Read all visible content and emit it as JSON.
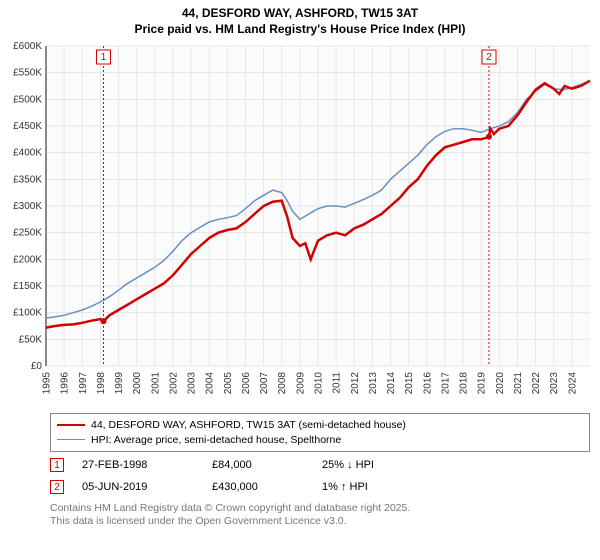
{
  "title_line1": "44, DESFORD WAY, ASHFORD, TW15 3AT",
  "title_line2": "Price paid vs. HM Land Registry's House Price Index (HPI)",
  "chart": {
    "type": "line",
    "background_color": "#ffffff",
    "plot_bg": "#fbfbfb",
    "grid_color": "#e6e6e6",
    "x_years": [
      1995,
      1996,
      1997,
      1998,
      1999,
      2000,
      2001,
      2002,
      2003,
      2004,
      2005,
      2006,
      2007,
      2008,
      2009,
      2010,
      2011,
      2012,
      2013,
      2014,
      2015,
      2016,
      2017,
      2018,
      2019,
      2020,
      2021,
      2022,
      2023,
      2024
    ],
    "x_range": [
      1995,
      2025
    ],
    "y_ticks": [
      0,
      50,
      100,
      150,
      200,
      250,
      300,
      350,
      400,
      450,
      500,
      550,
      600
    ],
    "y_tick_labels": [
      "£0",
      "£50K",
      "£100K",
      "£150K",
      "£200K",
      "£250K",
      "£300K",
      "£350K",
      "£400K",
      "£450K",
      "£500K",
      "£550K",
      "£600K"
    ],
    "y_range": [
      0,
      600
    ],
    "series": {
      "red": {
        "color": "#d40000",
        "width": 2.5,
        "label": "44, DESFORD WAY, ASHFORD, TW15 3AT (semi-detached house)",
        "points": [
          [
            1995,
            72
          ],
          [
            1995.5,
            75
          ],
          [
            1996,
            77
          ],
          [
            1996.5,
            78
          ],
          [
            1997,
            81
          ],
          [
            1997.5,
            85
          ],
          [
            1998,
            88
          ],
          [
            1998.17,
            84
          ],
          [
            1998.5,
            95
          ],
          [
            1999,
            105
          ],
          [
            1999.5,
            115
          ],
          [
            2000,
            125
          ],
          [
            2000.5,
            135
          ],
          [
            2001,
            145
          ],
          [
            2001.5,
            155
          ],
          [
            2002,
            170
          ],
          [
            2002.5,
            190
          ],
          [
            2003,
            210
          ],
          [
            2003.5,
            225
          ],
          [
            2004,
            240
          ],
          [
            2004.5,
            250
          ],
          [
            2005,
            255
          ],
          [
            2005.5,
            258
          ],
          [
            2006,
            270
          ],
          [
            2006.5,
            285
          ],
          [
            2007,
            300
          ],
          [
            2007.5,
            308
          ],
          [
            2008,
            310
          ],
          [
            2008.3,
            280
          ],
          [
            2008.6,
            240
          ],
          [
            2009,
            225
          ],
          [
            2009.3,
            230
          ],
          [
            2009.6,
            200
          ],
          [
            2010,
            235
          ],
          [
            2010.5,
            245
          ],
          [
            2011,
            250
          ],
          [
            2011.5,
            245
          ],
          [
            2012,
            258
          ],
          [
            2012.5,
            265
          ],
          [
            2013,
            275
          ],
          [
            2013.5,
            285
          ],
          [
            2014,
            300
          ],
          [
            2014.5,
            315
          ],
          [
            2015,
            335
          ],
          [
            2015.5,
            350
          ],
          [
            2016,
            375
          ],
          [
            2016.5,
            395
          ],
          [
            2017,
            410
          ],
          [
            2017.5,
            415
          ],
          [
            2018,
            420
          ],
          [
            2018.5,
            425
          ],
          [
            2019,
            425
          ],
          [
            2019.3,
            428
          ],
          [
            2019.43,
            430
          ],
          [
            2019.5,
            445
          ],
          [
            2019.7,
            435
          ],
          [
            2020,
            445
          ],
          [
            2020.5,
            450
          ],
          [
            2021,
            470
          ],
          [
            2021.5,
            495
          ],
          [
            2022,
            518
          ],
          [
            2022.5,
            530
          ],
          [
            2023,
            520
          ],
          [
            2023.3,
            510
          ],
          [
            2023.6,
            525
          ],
          [
            2024,
            520
          ],
          [
            2024.5,
            525
          ],
          [
            2025,
            535
          ]
        ]
      },
      "blue": {
        "color": "#6a8fc5",
        "width": 1.5,
        "label": "HPI: Average price, semi-detached house, Spelthorne",
        "points": [
          [
            1995,
            90
          ],
          [
            1995.5,
            92
          ],
          [
            1996,
            95
          ],
          [
            1996.5,
            100
          ],
          [
            1997,
            105
          ],
          [
            1997.5,
            112
          ],
          [
            1998,
            120
          ],
          [
            1998.5,
            130
          ],
          [
            1999,
            142
          ],
          [
            1999.5,
            155
          ],
          [
            2000,
            165
          ],
          [
            2000.5,
            175
          ],
          [
            2001,
            185
          ],
          [
            2001.5,
            198
          ],
          [
            2002,
            215
          ],
          [
            2002.5,
            235
          ],
          [
            2003,
            250
          ],
          [
            2003.5,
            260
          ],
          [
            2004,
            270
          ],
          [
            2004.5,
            275
          ],
          [
            2005,
            278
          ],
          [
            2005.5,
            282
          ],
          [
            2006,
            295
          ],
          [
            2006.5,
            310
          ],
          [
            2007,
            320
          ],
          [
            2007.5,
            330
          ],
          [
            2008,
            325
          ],
          [
            2008.3,
            310
          ],
          [
            2008.6,
            290
          ],
          [
            2009,
            275
          ],
          [
            2009.5,
            285
          ],
          [
            2010,
            295
          ],
          [
            2010.5,
            300
          ],
          [
            2011,
            300
          ],
          [
            2011.5,
            298
          ],
          [
            2012,
            305
          ],
          [
            2012.5,
            312
          ],
          [
            2013,
            320
          ],
          [
            2013.5,
            330
          ],
          [
            2014,
            350
          ],
          [
            2014.5,
            365
          ],
          [
            2015,
            380
          ],
          [
            2015.5,
            395
          ],
          [
            2016,
            415
          ],
          [
            2016.5,
            430
          ],
          [
            2017,
            440
          ],
          [
            2017.5,
            445
          ],
          [
            2018,
            445
          ],
          [
            2018.5,
            442
          ],
          [
            2019,
            438
          ],
          [
            2019.5,
            445
          ],
          [
            2020,
            450
          ],
          [
            2020.5,
            458
          ],
          [
            2021,
            475
          ],
          [
            2021.5,
            500
          ],
          [
            2022,
            515
          ],
          [
            2022.5,
            528
          ],
          [
            2023,
            520
          ],
          [
            2023.5,
            518
          ],
          [
            2024,
            522
          ],
          [
            2024.5,
            528
          ],
          [
            2025,
            535
          ]
        ]
      }
    },
    "sale_markers": [
      {
        "n": 1,
        "x": 1998.17,
        "y": 84,
        "color": "#d40000"
      },
      {
        "n": 2,
        "x": 2019.43,
        "y": 430,
        "color": "#d40000"
      }
    ]
  },
  "events": [
    {
      "n": "1",
      "color": "#d40000",
      "date": "27-FEB-1998",
      "price": "£84,000",
      "delta": "25% ↓ HPI"
    },
    {
      "n": "2",
      "color": "#d40000",
      "date": "05-JUN-2019",
      "price": "£430,000",
      "delta": "1% ↑ HPI"
    }
  ],
  "attribution_line1": "Contains HM Land Registry data © Crown copyright and database right 2025.",
  "attribution_line2": "This data is licensed under the Open Government Licence v3.0."
}
